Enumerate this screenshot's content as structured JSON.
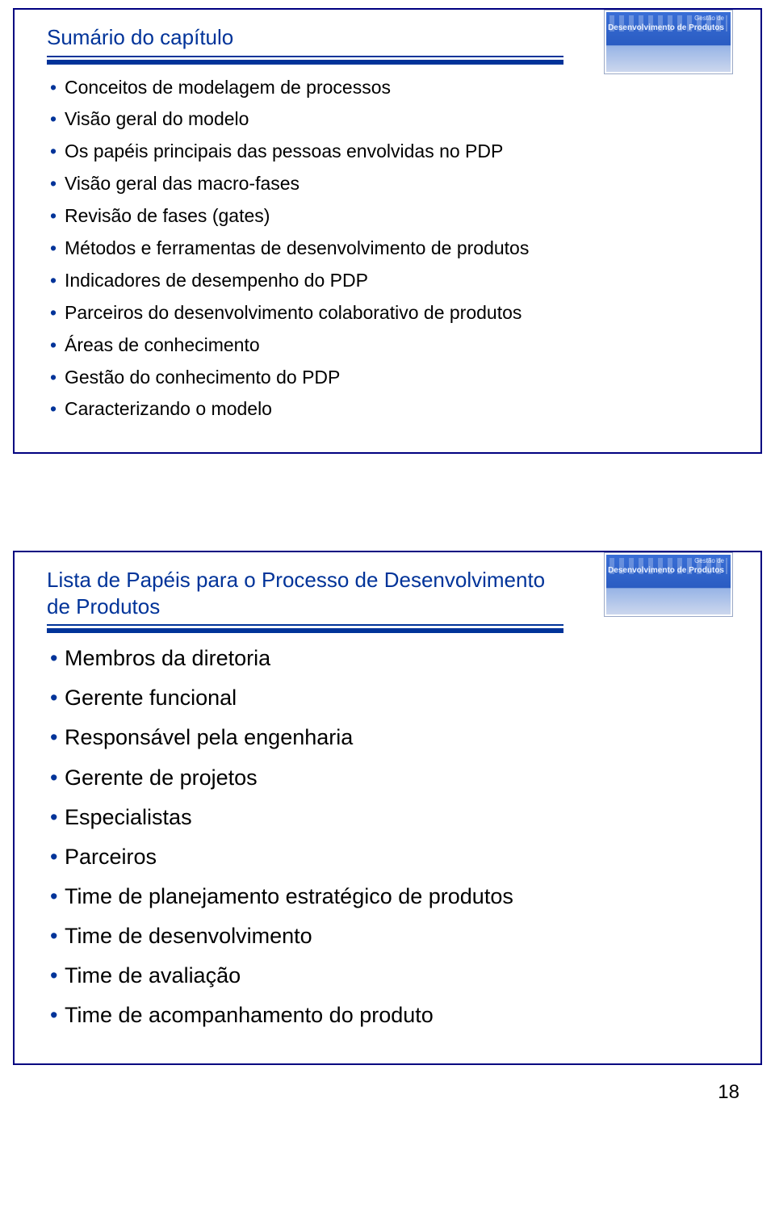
{
  "colors": {
    "accent": "#003399",
    "slide_border": "#000080",
    "text": "#000000",
    "background": "#ffffff"
  },
  "thumb": {
    "line1": "Gestão de",
    "line2": "Desenvolvimento de Produtos"
  },
  "slide1": {
    "title": "Sumário do capítulo",
    "items": [
      "Conceitos de modelagem de processos",
      "Visão geral do modelo",
      "Os papéis principais das pessoas envolvidas no PDP",
      "Visão geral das macro-fases",
      "Revisão de fases (gates)",
      "Métodos e ferramentas de desenvolvimento de produtos",
      "Indicadores de desempenho do PDP",
      "Parceiros do desenvolvimento colaborativo de produtos",
      "Áreas de conhecimento",
      "Gestão do conhecimento do PDP",
      "Caracterizando o modelo"
    ]
  },
  "slide2": {
    "title": "Lista de Papéis para o Processo de Desenvolvimento de Produtos",
    "items": [
      "Membros da diretoria",
      "Gerente funcional",
      "Responsável pela engenharia",
      "Gerente de projetos",
      "Especialistas",
      "Parceiros",
      "Time de planejamento estratégico de produtos",
      "Time de desenvolvimento",
      "Time de avaliação",
      "Time de acompanhamento do produto"
    ]
  },
  "page_number": "18"
}
